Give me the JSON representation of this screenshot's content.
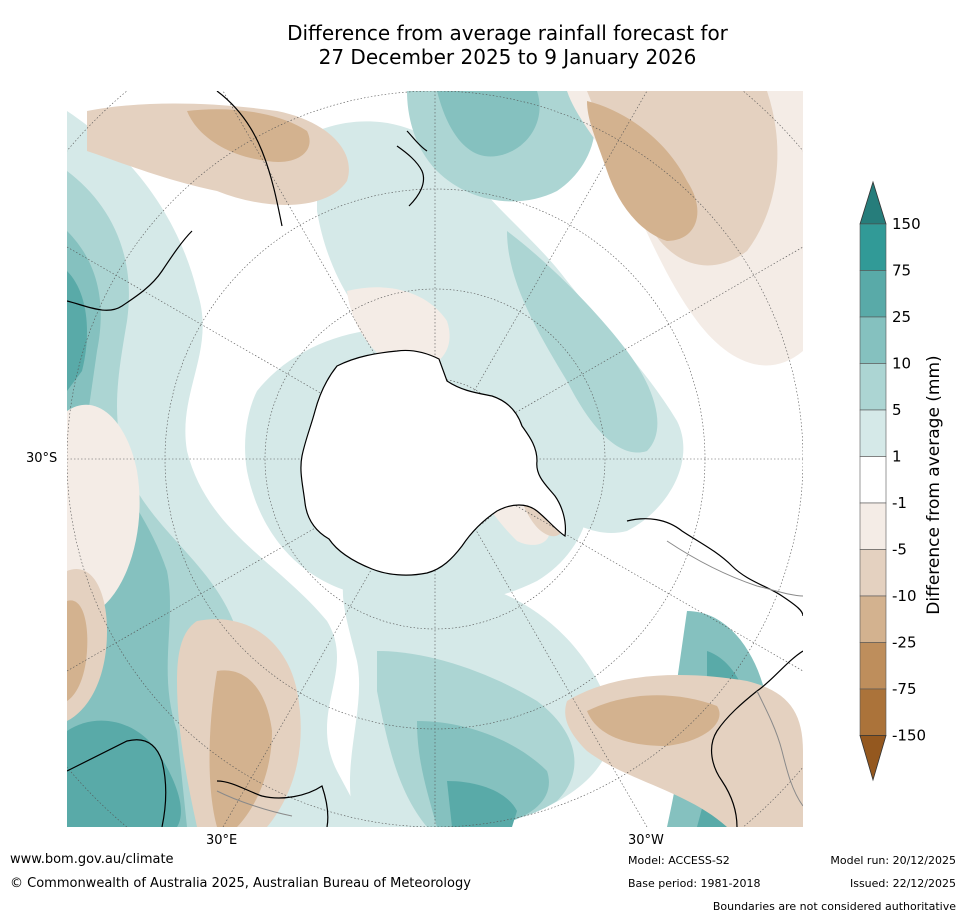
{
  "title": {
    "line1": "Difference from average rainfall forecast for",
    "line2": "27 December 2025 to 9 January 2026"
  },
  "map": {
    "projection": "south-polar stereographic",
    "latitude_label": "30°S",
    "longitude_labels": [
      "30°E",
      "30°W"
    ],
    "colors": {
      "land_outline": "#000000",
      "graticule": "#555555",
      "border": "#8a8a8a"
    }
  },
  "colorbar": {
    "title": "Difference from average (mm)",
    "ticks": [
      "150",
      "75",
      "25",
      "10",
      "5",
      "1",
      "-1",
      "-5",
      "-10",
      "-25",
      "-75",
      "-150"
    ],
    "colors": {
      "above_150": "#267d7b",
      "75_150": "#319a97",
      "25_75": "#59aaa8",
      "10_25": "#85c1bf",
      "5_10": "#acd5d3",
      "1_5": "#d5e9e8",
      "minus1_1": "#ffffff",
      "minus5_minus1": "#f4ece6",
      "minus10_minus5": "#e4d1c0",
      "minus25_minus10": "#d3b28f",
      "minus75_minus25": "#be8e5c",
      "minus150_minus75": "#ab733a",
      "below_minus150": "#94581f"
    }
  },
  "footer": {
    "website": "www.bom.gov.au/climate",
    "copyright": "© Commonwealth of Australia 2025, Australian Bureau of Meteorology",
    "model": "Model: ACCESS-S2",
    "base_period": "Base period: 1981-2018",
    "model_run": "Model run: 20/12/2025",
    "issued": "Issued: 22/12/2025",
    "disclaimer": "Boundaries are not considered authoritative"
  }
}
